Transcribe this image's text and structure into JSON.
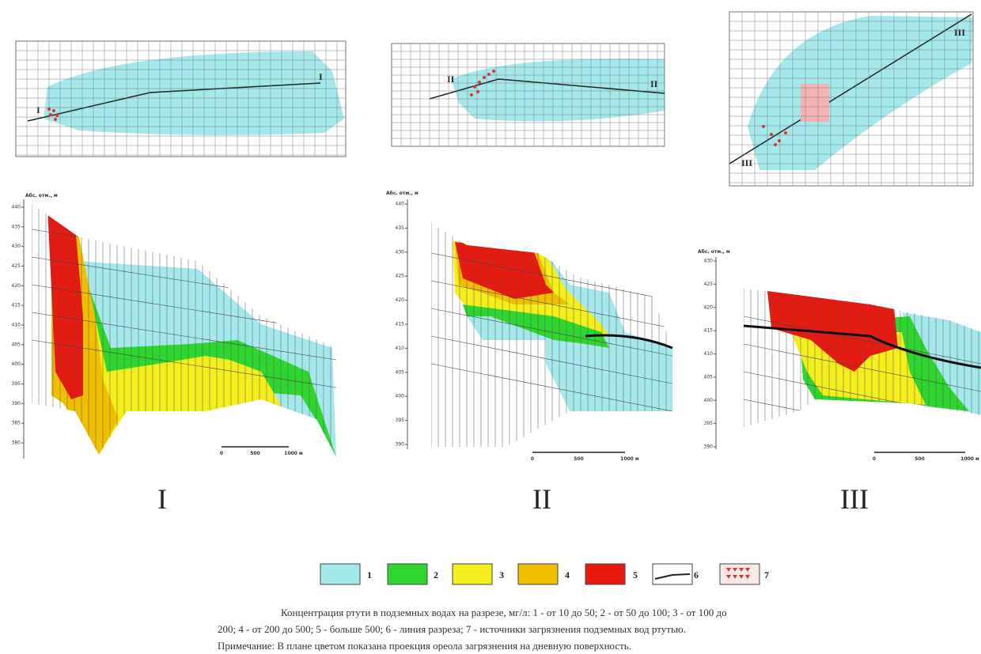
{
  "panels": [
    {
      "label": "I",
      "map_labels": [
        "I",
        "I"
      ],
      "axis_label": "Абс. отм., м",
      "yticks": [
        440,
        435,
        430,
        425,
        420,
        415,
        410,
        405,
        400,
        395,
        390,
        385,
        380
      ],
      "scale": [
        "0",
        "500",
        "1000 м"
      ]
    },
    {
      "label": "II",
      "map_labels": [
        "II",
        "II"
      ],
      "axis_label": "Абс. отм., м",
      "yticks": [
        440,
        435,
        430,
        425,
        420,
        415,
        410,
        405,
        400,
        395,
        390
      ],
      "scale": [
        "0",
        "500",
        "1000 м"
      ]
    },
    {
      "label": "III",
      "map_labels": [
        "III",
        "III"
      ],
      "axis_label": "Абс. отм., м",
      "yticks": [
        430,
        425,
        420,
        415,
        410,
        405,
        400,
        395,
        390
      ],
      "scale": [
        "0",
        "500",
        "1000 м"
      ]
    }
  ],
  "legend": [
    "1",
    "2",
    "3",
    "4",
    "5",
    "6",
    "7"
  ],
  "caption": [
    "Концентрация ртути в подземных водах на разрезе, мг/л: 1 - от 10 до 50; 2 - от 50 до 100; 3 - от 100 до",
    "200; 4 - от 200 до 500; 5 - больше 500; 6 - линия разреза; 7 - источники загрязнения подземных вод ртутью.",
    "Примечание: В плане цветом показана проекция ореола загрязнения на дневную поверхность."
  ]
}
